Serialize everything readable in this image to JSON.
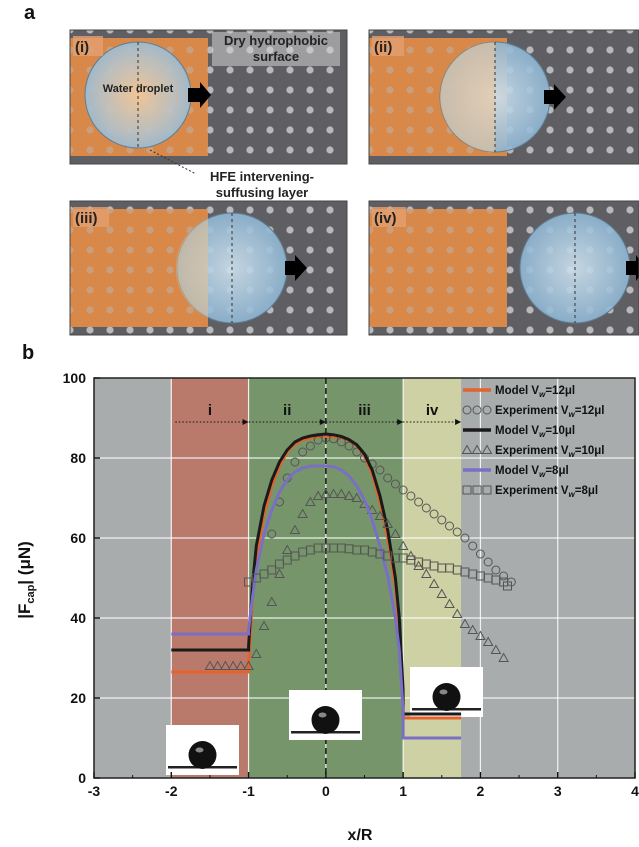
{
  "panel_a": {
    "letter": "a",
    "label_dry": "Dry hydrophobic surface",
    "label_dry_line1": "Dry hydrophobic",
    "label_dry_line2": "surface",
    "label_water": "Water droplet",
    "label_hfe_line1": "HFE intervening-",
    "label_hfe_line2": "suffusing layer",
    "stages": [
      "(i)",
      "(ii)",
      "(iii)",
      "(iv)"
    ],
    "colors": {
      "surface": "#5f5f63",
      "hfe": "#d8894a",
      "pillar": "#b9b9bd",
      "droplet": "#a9c8dc"
    }
  },
  "panel_b": {
    "letter": "b"
  },
  "chart_data": {
    "type": "line",
    "xlabel": "x/R",
    "ylabel_main": "|F",
    "ylabel_sub": "cap",
    "ylabel_unit": "| (μN)",
    "xlim": [
      -3,
      4
    ],
    "ylim": [
      0,
      100
    ],
    "xticks": [
      -3,
      -2,
      -1,
      0,
      1,
      2,
      3,
      4
    ],
    "yticks": [
      0,
      20,
      40,
      60,
      80,
      100
    ],
    "grid": true,
    "regions": [
      {
        "label": "i",
        "x0": -2,
        "x1": -1,
        "color": "#b97a6c"
      },
      {
        "label": "ii",
        "x0": -1,
        "x1": 0,
        "color": "#77956a"
      },
      {
        "label": "iii",
        "x0": 0,
        "x1": 1,
        "color": "#77956a"
      },
      {
        "label": "iv",
        "x0": 1,
        "x1": 1.75,
        "color": "#cdd1a3"
      }
    ],
    "legend_position": "top-right",
    "series": [
      {
        "name": "Model Vw=12μl",
        "legend_pre": "Model V",
        "legend_sub": "w",
        "legend_post": "=12μl",
        "kind": "line",
        "color": "#e4622c",
        "x": [
          -2.0,
          -1.0,
          -1.0,
          -0.95,
          -0.9,
          -0.8,
          -0.7,
          -0.6,
          -0.5,
          -0.4,
          -0.3,
          -0.2,
          -0.1,
          0.0,
          0.1,
          0.2,
          0.3,
          0.4,
          0.5,
          0.6,
          0.7,
          0.8,
          0.9,
          0.95,
          1.0,
          1.0,
          1.75
        ],
        "y": [
          26.5,
          26.5,
          28,
          45,
          55,
          66,
          73,
          78,
          81.5,
          83.5,
          84.5,
          85,
          85.3,
          85.4,
          85.3,
          85,
          84.3,
          83,
          80.5,
          76,
          69,
          60,
          48,
          38,
          20,
          15,
          15
        ]
      },
      {
        "name": "Experiment Vw=12μl",
        "legend_pre": "Experiment V",
        "legend_sub": "w",
        "legend_post": "=12μl",
        "kind": "marker",
        "marker": "circle",
        "color": "#555555",
        "x": [
          -0.7,
          -0.6,
          -0.5,
          -0.4,
          -0.3,
          -0.2,
          -0.1,
          0.0,
          0.1,
          0.2,
          0.3,
          0.4,
          0.5,
          0.6,
          0.7,
          0.8,
          0.9,
          1.0,
          1.1,
          1.2,
          1.3,
          1.4,
          1.5,
          1.6,
          1.7,
          1.8,
          1.9,
          2.0,
          2.1,
          2.2,
          2.3,
          2.4
        ],
        "y": [
          61,
          69,
          75,
          79,
          81.5,
          83,
          84.5,
          85,
          84.8,
          84,
          83,
          81.5,
          80,
          78.5,
          77,
          75,
          73.5,
          72,
          70.5,
          69,
          67.5,
          66,
          64.5,
          63,
          61.5,
          60,
          58,
          56,
          54,
          52,
          50.5,
          49
        ]
      },
      {
        "name": "Model Vw=10μl",
        "legend_pre": "Model V",
        "legend_sub": "w",
        "legend_post": "=10μl",
        "kind": "line",
        "color": "#1a1a1a",
        "x": [
          -2.0,
          -1.0,
          -1.0,
          -0.95,
          -0.9,
          -0.8,
          -0.7,
          -0.6,
          -0.5,
          -0.4,
          -0.3,
          -0.2,
          -0.1,
          0.0,
          0.1,
          0.2,
          0.3,
          0.4,
          0.5,
          0.6,
          0.7,
          0.8,
          0.9,
          0.95,
          1.0,
          1.0,
          1.75
        ],
        "y": [
          32,
          32,
          33,
          48,
          58,
          68,
          74.5,
          79,
          82,
          84,
          85,
          85.5,
          85.8,
          86,
          85.8,
          85.4,
          84.6,
          83.3,
          81,
          77,
          70.5,
          62,
          50,
          40,
          22,
          16,
          16
        ]
      },
      {
        "name": "Experiment Vw=10μl",
        "legend_pre": "Experiment V",
        "legend_sub": "w",
        "legend_post": "=10μl",
        "kind": "marker",
        "marker": "triangle",
        "color": "#555555",
        "x": [
          -1.5,
          -1.4,
          -1.3,
          -1.2,
          -1.1,
          -1.0,
          -0.9,
          -0.8,
          -0.7,
          -0.6,
          -0.5,
          -0.4,
          -0.3,
          -0.2,
          -0.1,
          0.0,
          0.1,
          0.2,
          0.3,
          0.4,
          0.5,
          0.6,
          0.7,
          0.8,
          0.9,
          1.0,
          1.1,
          1.2,
          1.3,
          1.4,
          1.5,
          1.6,
          1.7,
          1.8,
          1.9,
          2.0,
          2.1,
          2.2,
          2.3
        ],
        "y": [
          28,
          28,
          28,
          28,
          28,
          28,
          31,
          38,
          44,
          51,
          57,
          62,
          66,
          69,
          70.5,
          71,
          71,
          71,
          70.5,
          70,
          68.5,
          67,
          65.5,
          63.5,
          61,
          58,
          55.5,
          53,
          51,
          48.5,
          46,
          43.5,
          41,
          38.5,
          37,
          35.5,
          34,
          32,
          30
        ]
      },
      {
        "name": "Model Vw=8μl",
        "legend_pre": "Model V",
        "legend_sub": "w",
        "legend_post": "=8μl",
        "kind": "line",
        "color": "#7a6fc4",
        "x": [
          -2.0,
          -1.0,
          -1.0,
          -0.95,
          -0.9,
          -0.8,
          -0.7,
          -0.6,
          -0.5,
          -0.4,
          -0.3,
          -0.2,
          -0.1,
          0.0,
          0.1,
          0.2,
          0.3,
          0.4,
          0.5,
          0.6,
          0.7,
          0.8,
          0.9,
          0.95,
          1.0,
          1.0,
          1.75
        ],
        "y": [
          36,
          36,
          37,
          45,
          52,
          61,
          67,
          71.5,
          74.5,
          76.5,
          77.5,
          78,
          78,
          78,
          77.8,
          77,
          75.5,
          73,
          69.5,
          64.5,
          58,
          50.5,
          40,
          32,
          17,
          10,
          10
        ]
      },
      {
        "name": "Experiment Vw=8μl",
        "legend_pre": "Experiment V",
        "legend_sub": "w",
        "legend_post": "=8μl",
        "kind": "marker",
        "marker": "square",
        "color": "#555555",
        "x": [
          -1.0,
          -0.9,
          -0.8,
          -0.7,
          -0.6,
          -0.5,
          -0.4,
          -0.3,
          -0.2,
          -0.1,
          0.0,
          0.1,
          0.2,
          0.3,
          0.4,
          0.5,
          0.6,
          0.7,
          0.8,
          0.9,
          1.0,
          1.1,
          1.2,
          1.3,
          1.4,
          1.5,
          1.6,
          1.7,
          1.8,
          1.9,
          2.0,
          2.1,
          2.2,
          2.3,
          2.35
        ],
        "y": [
          49,
          50,
          51,
          52,
          53.5,
          54.5,
          55.5,
          56.5,
          57,
          57.5,
          57.5,
          57.5,
          57.5,
          57.3,
          57,
          57,
          56.5,
          56,
          55.5,
          55,
          55,
          54.5,
          54,
          53.5,
          53,
          52.5,
          52.5,
          52,
          51.5,
          51,
          50.5,
          50,
          49.5,
          49,
          48
        ]
      }
    ]
  }
}
